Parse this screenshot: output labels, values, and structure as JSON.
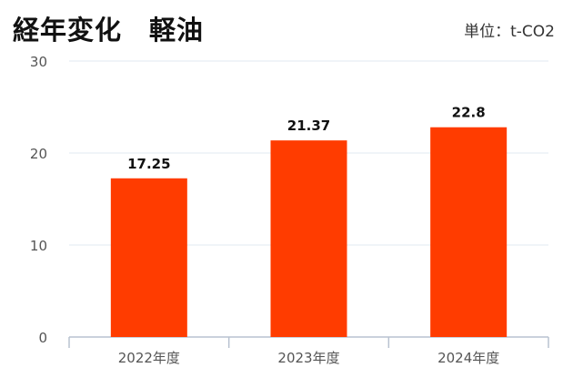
{
  "title": "経年変化　軽油",
  "unit": "単位：t-CO2",
  "chart_data": {
    "type": "bar",
    "categories": [
      "2022年度",
      "2023年度",
      "2024年度"
    ],
    "values": [
      17.25,
      21.37,
      22.8
    ],
    "value_labels": [
      "17.25",
      "21.37",
      "22.8"
    ],
    "ylim": [
      0,
      30
    ],
    "yticks": [
      0,
      10,
      20,
      30
    ],
    "grid": true,
    "bar_color": "#ff3c00",
    "grid_color": "#e2e8f0",
    "axis_color": "#b8c2d0"
  }
}
